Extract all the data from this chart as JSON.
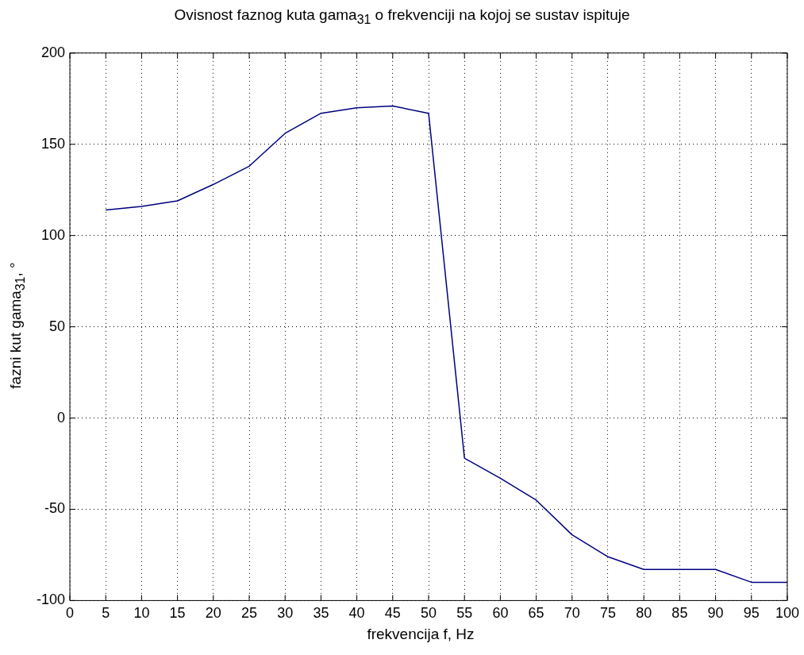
{
  "chart_data": {
    "type": "line",
    "title": "Ovisnost faznog kuta gama$_{31}$ o frekvenciji na kojoj se sustav ispituje",
    "xlabel": "frekvencija f, Hz",
    "ylabel": "fazni kut gama$_{31}$, °",
    "x": [
      5,
      10,
      15,
      20,
      25,
      30,
      35,
      40,
      45,
      50,
      55,
      60,
      65,
      70,
      75,
      80,
      85,
      90,
      95,
      100
    ],
    "series": [
      {
        "color": "#000080",
        "values": [
          114,
          116,
          119,
          128,
          138,
          156,
          167,
          170,
          171,
          167,
          -22,
          -33,
          -45,
          -64,
          -76,
          -83,
          -83,
          -83,
          -90,
          -90
        ]
      }
    ],
    "xlim": [
      0,
      100
    ],
    "xticks": [
      0,
      5,
      10,
      15,
      20,
      25,
      30,
      35,
      40,
      45,
      50,
      55,
      60,
      65,
      70,
      75,
      80,
      85,
      90,
      95,
      100
    ],
    "ylim": [
      -100,
      200
    ],
    "yticks": [
      -100,
      -50,
      0,
      50,
      100,
      150,
      200
    ],
    "grid": true,
    "legend": false,
    "marker": "none",
    "line_style": "solid"
  }
}
